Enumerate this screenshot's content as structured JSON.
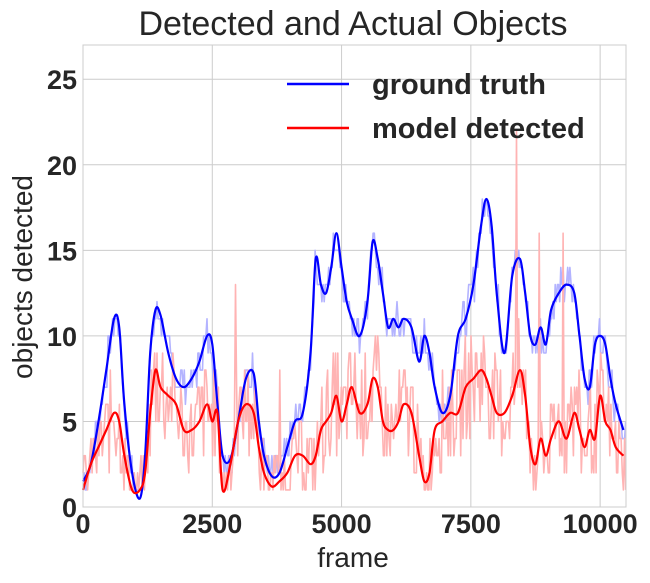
{
  "chart_data": {
    "type": "line",
    "title": "Detected and Actual Objects",
    "xlabel": "frame",
    "ylabel": "objects detected",
    "xlim": [
      0,
      10500
    ],
    "ylim": [
      0,
      27
    ],
    "xticks": [
      0,
      2500,
      5000,
      7500,
      10000
    ],
    "xtick_labels": [
      "0",
      "2500",
      "5000",
      "7500",
      "10000"
    ],
    "yticks": [
      0,
      5,
      10,
      15,
      20,
      25
    ],
    "ytick_labels": [
      "0",
      "5",
      "10",
      "15",
      "20",
      "25"
    ],
    "grid": true,
    "legend": {
      "position": "top-right"
    },
    "series": [
      {
        "name": "ground truth",
        "color": "#0000ff",
        "raw_color": "#b3b3ff",
        "x": [
          0,
          150,
          300,
          450,
          600,
          700,
          800,
          950,
          1100,
          1200,
          1300,
          1400,
          1500,
          1650,
          1800,
          1950,
          2100,
          2250,
          2400,
          2500,
          2600,
          2700,
          2850,
          3000,
          3150,
          3300,
          3400,
          3500,
          3650,
          3800,
          3950,
          4100,
          4250,
          4400,
          4500,
          4600,
          4700,
          4800,
          4900,
          5000,
          5100,
          5200,
          5350,
          5500,
          5600,
          5700,
          5800,
          5900,
          6000,
          6100,
          6200,
          6350,
          6500,
          6600,
          6700,
          6800,
          6950,
          7100,
          7250,
          7400,
          7550,
          7700,
          7800,
          7900,
          8000,
          8150,
          8300,
          8450,
          8550,
          8650,
          8750,
          8850,
          8950,
          9050,
          9200,
          9350,
          9500,
          9600,
          9700,
          9800,
          9900,
          10000,
          10100,
          10200,
          10300,
          10450
        ],
        "values": [
          1.5,
          2.5,
          5.0,
          8.0,
          11.0,
          10.5,
          6.0,
          2.0,
          0.5,
          3.0,
          9.0,
          11.5,
          11.2,
          9.0,
          7.5,
          7.0,
          7.5,
          8.5,
          10.0,
          9.5,
          6.0,
          3.0,
          2.8,
          5.0,
          7.5,
          7.8,
          5.0,
          3.0,
          1.8,
          2.0,
          3.5,
          5.0,
          5.5,
          9.0,
          14.5,
          13.0,
          12.5,
          14.0,
          16.0,
          14.0,
          12.0,
          11.0,
          10.0,
          12.0,
          15.5,
          14.5,
          12.5,
          10.5,
          11.0,
          10.5,
          11.0,
          10.5,
          8.5,
          10.0,
          9.0,
          7.0,
          5.5,
          6.5,
          10.0,
          11.0,
          13.0,
          16.5,
          18.0,
          16.5,
          12.5,
          9.0,
          13.5,
          14.5,
          12.5,
          10.0,
          9.5,
          10.5,
          9.5,
          11.5,
          12.5,
          13.0,
          12.5,
          10.0,
          7.5,
          7.0,
          9.5,
          10.0,
          9.5,
          7.5,
          6.0,
          4.5
        ]
      },
      {
        "name": "model detected",
        "color": "#ff0000",
        "raw_color": "#ffb3b3",
        "x": [
          0,
          150,
          300,
          450,
          600,
          700,
          800,
          950,
          1100,
          1200,
          1300,
          1400,
          1500,
          1650,
          1800,
          1950,
          2100,
          2250,
          2400,
          2500,
          2600,
          2700,
          2850,
          3000,
          3150,
          3300,
          3400,
          3500,
          3650,
          3800,
          3950,
          4100,
          4250,
          4400,
          4500,
          4600,
          4700,
          4800,
          4900,
          5000,
          5100,
          5200,
          5350,
          5500,
          5600,
          5700,
          5800,
          5900,
          6000,
          6100,
          6200,
          6350,
          6500,
          6600,
          6700,
          6800,
          6950,
          7100,
          7250,
          7400,
          7550,
          7700,
          7800,
          7900,
          8000,
          8150,
          8300,
          8450,
          8550,
          8650,
          8750,
          8850,
          8950,
          9050,
          9200,
          9350,
          9500,
          9600,
          9700,
          9800,
          9900,
          10000,
          10100,
          10200,
          10300,
          10450
        ],
        "values": [
          1.0,
          2.5,
          3.5,
          4.5,
          5.5,
          5.0,
          3.0,
          1.0,
          1.0,
          2.0,
          5.5,
          8.0,
          7.0,
          6.5,
          6.0,
          4.5,
          4.5,
          5.0,
          6.0,
          5.0,
          5.5,
          1.0,
          2.5,
          5.0,
          6.0,
          5.5,
          3.5,
          2.0,
          1.2,
          1.5,
          2.0,
          3.0,
          3.0,
          2.5,
          3.0,
          4.5,
          5.0,
          5.5,
          6.5,
          5.0,
          6.0,
          7.0,
          5.5,
          6.0,
          7.5,
          7.0,
          5.0,
          4.5,
          4.5,
          5.0,
          6.0,
          5.5,
          3.0,
          1.5,
          2.0,
          4.5,
          5.0,
          5.5,
          5.5,
          7.0,
          7.5,
          8.0,
          7.5,
          6.5,
          5.5,
          5.5,
          6.5,
          8.0,
          6.5,
          3.5,
          2.5,
          4.0,
          3.0,
          4.0,
          5.0,
          4.0,
          5.5,
          4.5,
          3.5,
          4.5,
          4.0,
          6.5,
          5.0,
          4.5,
          3.5,
          3.0
        ]
      }
    ]
  }
}
